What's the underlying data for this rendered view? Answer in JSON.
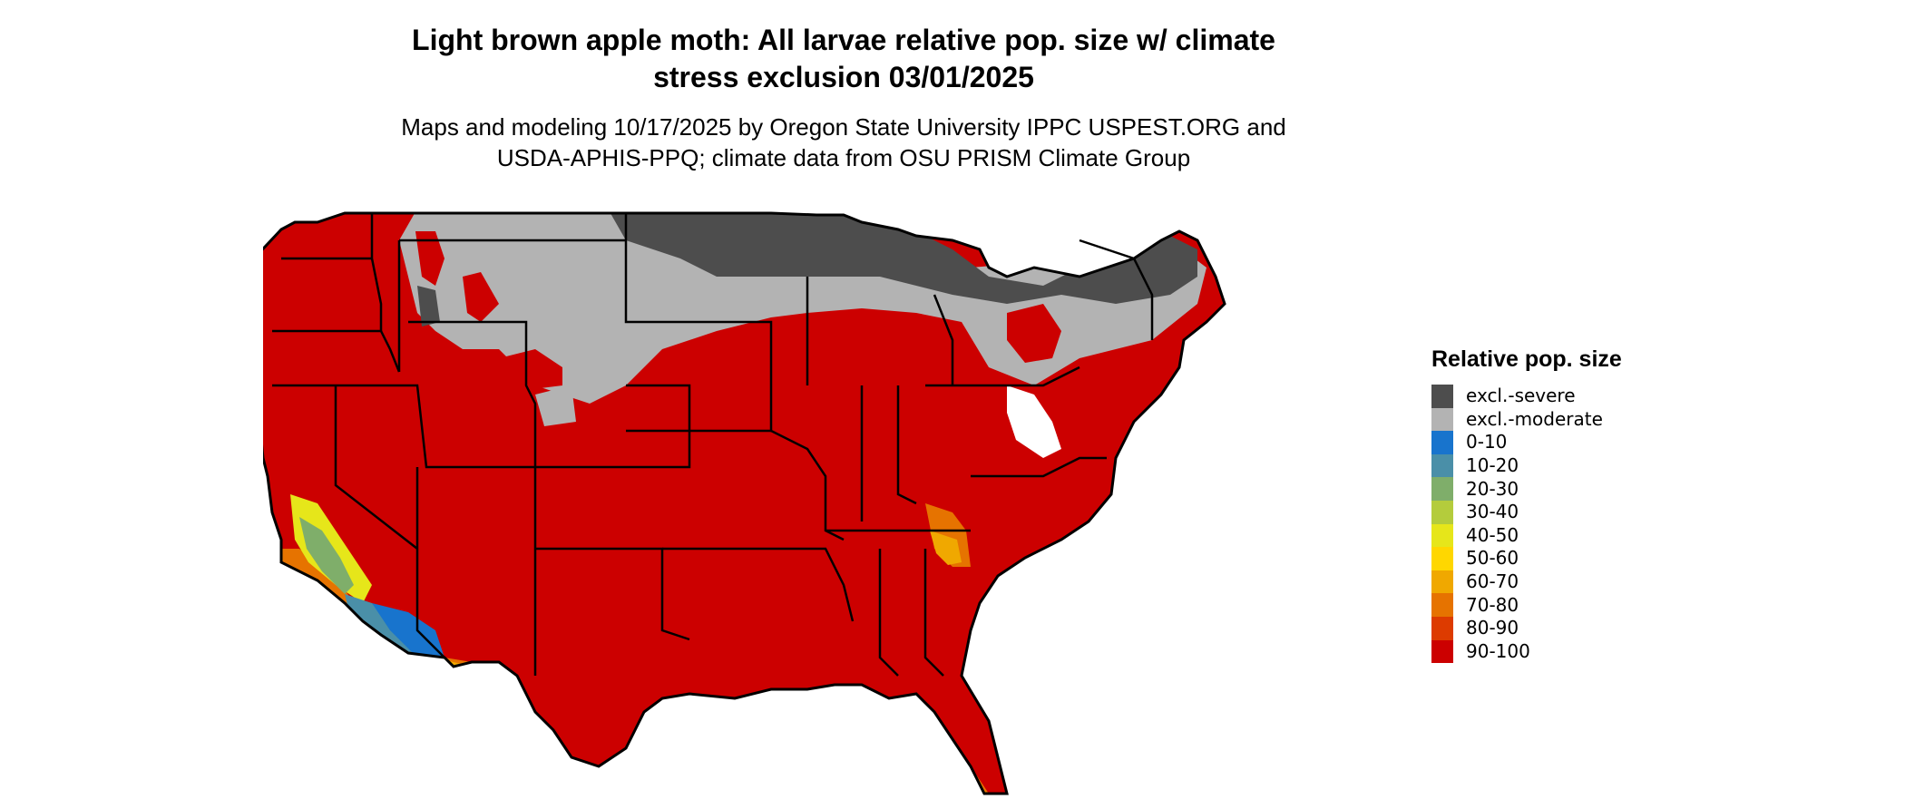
{
  "title": "Light brown apple moth: All larvae relative pop. size w/ climate stress exclusion 03/01/2025",
  "title_lines": [
    "Light brown apple moth: All larvae relative pop. size w/ climate",
    "stress exclusion 03/01/2025"
  ],
  "subtitle_lines": [
    "Maps and modeling 10/17/2025 by Oregon State University IPPC USPEST.ORG and",
    "USDA-APHIS-PPQ; climate data from OSU PRISM Climate Group"
  ],
  "legend": {
    "title": "Relative pop. size",
    "items": [
      {
        "label": "excl.-severe",
        "color": "#4d4d4d"
      },
      {
        "label": "excl.-moderate",
        "color": "#b3b3b3"
      },
      {
        "label": "0-10",
        "color": "#1874cd"
      },
      {
        "label": "10-20",
        "color": "#4a8fa8"
      },
      {
        "label": "20-30",
        "color": "#7fae6a"
      },
      {
        "label": "30-40",
        "color": "#b4cc3c"
      },
      {
        "label": "40-50",
        "color": "#e6e61a"
      },
      {
        "label": "50-60",
        "color": "#ffd700"
      },
      {
        "label": "60-70",
        "color": "#f0a800"
      },
      {
        "label": "70-80",
        "color": "#e67300"
      },
      {
        "label": "80-90",
        "color": "#dd3b00"
      },
      {
        "label": "90-100",
        "color": "#cc0000"
      }
    ]
  },
  "map": {
    "region": "Contiguous United States",
    "boundaries": "state outlines",
    "colors": {
      "severe": "#4d4d4d",
      "moderate": "#b3b3b3",
      "blue": "#1874cd",
      "teal": "#4a8fa8",
      "green": "#7fae6a",
      "lime": "#b4cc3c",
      "yellow": "#e6e61a",
      "gold": "#ffd700",
      "amber": "#f0a800",
      "orange": "#e67300",
      "redorange": "#dd3b00",
      "red": "#cc0000",
      "lake": "#ffffff",
      "border": "#000000"
    }
  }
}
